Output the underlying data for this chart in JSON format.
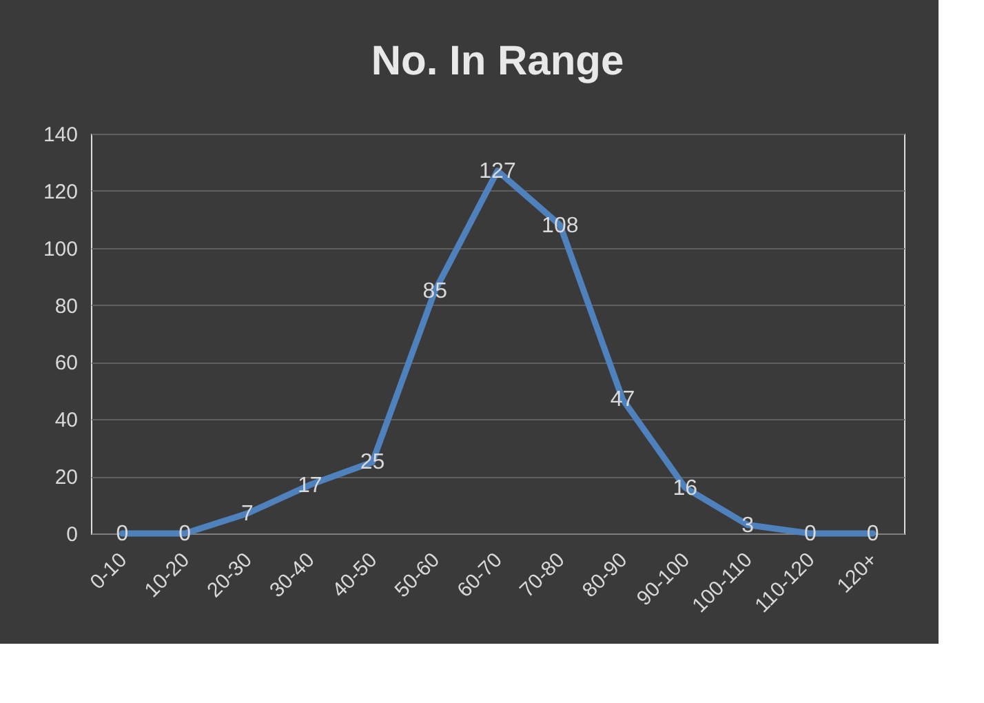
{
  "chart_data": {
    "type": "line",
    "title": "No. In Range",
    "categories": [
      "0-10",
      "10-20",
      "20-30",
      "30-40",
      "40-50",
      "50-60",
      "60-70",
      "70-80",
      "80-90",
      "90-100",
      "100-110",
      "110-120",
      "120+"
    ],
    "values": [
      0,
      0,
      7,
      17,
      25,
      85,
      127,
      108,
      47,
      16,
      3,
      0,
      0
    ],
    "color": "#4f81bd",
    "ylim": [
      0,
      140
    ],
    "yticks": [
      0,
      20,
      40,
      60,
      80,
      100,
      120,
      140
    ],
    "grid": "y",
    "data_labels": true,
    "marker": "none",
    "line_style": "solid"
  }
}
